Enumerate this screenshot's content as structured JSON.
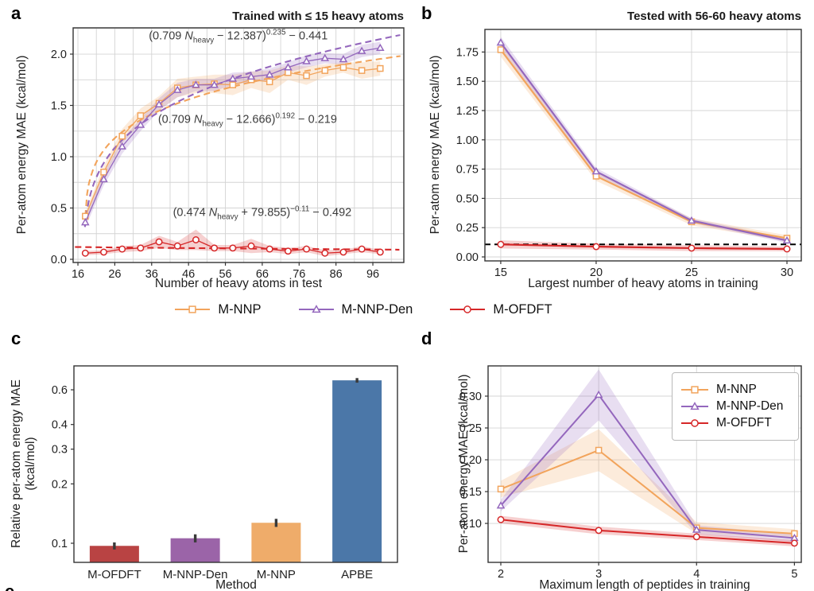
{
  "panels": {
    "a": {
      "label": "a",
      "title": "Trained with ≤ 15 heavy atoms",
      "xlabel": "Number of heavy atoms in test",
      "ylabel": "Per-atom energy MAE (kcal/mol)"
    },
    "b": {
      "label": "b",
      "title": "Tested with 56-60 heavy atoms",
      "xlabel": "Largest number of heavy atoms in training",
      "ylabel": "Per-atom energy MAE (kcal/mol)"
    },
    "c": {
      "label": "c",
      "xlabel": "Method",
      "ylabel_line1": "Relative per-atom energy MAE",
      "ylabel_line2": "(kcal/mol)"
    },
    "d": {
      "label": "d",
      "xlabel": "Maximum length of peptides in training",
      "ylabel": "Per-atom energy MAE (kcal/mol)"
    },
    "partial_next_label": "e"
  },
  "legend": {
    "items": [
      {
        "label": "M-NNP",
        "marker": "square",
        "color": "#F2A45C"
      },
      {
        "label": "M-NNP-Den",
        "marker": "triangle",
        "color": "#9467BD"
      },
      {
        "label": "M-OFDFT",
        "marker": "circle",
        "color": "#D62728"
      }
    ]
  },
  "chart_data": [
    {
      "id": "a",
      "type": "line",
      "title": "Trained with ≤ 15 heavy atoms",
      "xlabel": "Number of heavy atoms in test",
      "ylabel": "Per-atom energy MAE (kcal/mol)",
      "xlim": [
        14.7,
        104.4
      ],
      "ylim": [
        -0.031,
        2.256
      ],
      "xticks": {
        "values": [
          16,
          26,
          36,
          46,
          56,
          66,
          76,
          86,
          96
        ],
        "labels": [
          "16",
          "26",
          "36",
          "46",
          "56",
          "66",
          "76",
          "86",
          "96"
        ]
      },
      "yticks": {
        "values": [
          0.0,
          0.5,
          1.0,
          1.5,
          2.0
        ],
        "labels": [
          "0.0",
          "0.5",
          "1.0",
          "1.5",
          "2.0"
        ]
      },
      "xgrid": [
        16,
        21,
        26,
        31,
        36,
        41,
        46,
        51,
        56,
        61,
        66,
        71,
        76,
        81,
        86,
        91,
        96,
        101
      ],
      "ygrid": [
        0,
        0.25,
        0.5,
        0.75,
        1.0,
        1.25,
        1.5,
        1.75,
        2.0,
        2.25
      ],
      "x": [
        18,
        23,
        28,
        33,
        38,
        43,
        48,
        53,
        58,
        63,
        68,
        73,
        78,
        83,
        88,
        93,
        98
      ],
      "series": [
        {
          "name": "M-NNP",
          "marker": "square",
          "color": "#F2A45C",
          "line_width": 1.3,
          "values": [
            0.42,
            0.85,
            1.2,
            1.4,
            1.52,
            1.67,
            1.7,
            1.71,
            1.7,
            1.75,
            1.73,
            1.82,
            1.79,
            1.84,
            1.87,
            1.84,
            1.86
          ],
          "band": [
            0.04,
            0.06,
            0.07,
            0.07,
            0.07,
            0.09,
            0.08,
            0.09,
            0.1,
            0.08,
            0.11,
            0.07,
            0.09,
            0.06,
            0.05,
            0.08,
            0.07
          ]
        },
        {
          "name": "M-NNP-Den",
          "marker": "triangle",
          "color": "#9467BD",
          "line_width": 1.3,
          "values": [
            0.36,
            0.78,
            1.1,
            1.31,
            1.51,
            1.65,
            1.7,
            1.7,
            1.76,
            1.78,
            1.8,
            1.87,
            1.93,
            1.96,
            1.95,
            2.03,
            2.06
          ],
          "band": [
            0.05,
            0.06,
            0.07,
            0.06,
            0.06,
            0.07,
            0.06,
            0.06,
            0.06,
            0.05,
            0.06,
            0.05,
            0.06,
            0.05,
            0.05,
            0.06,
            0.06
          ]
        },
        {
          "name": "M-OFDFT",
          "marker": "circle",
          "color": "#D62728",
          "line_width": 1.3,
          "values": [
            0.06,
            0.07,
            0.1,
            0.11,
            0.17,
            0.13,
            0.19,
            0.11,
            0.11,
            0.13,
            0.1,
            0.08,
            0.1,
            0.06,
            0.07,
            0.1,
            0.07
          ],
          "band": [
            0.02,
            0.02,
            0.03,
            0.03,
            0.06,
            0.04,
            0.1,
            0.03,
            0.03,
            0.07,
            0.03,
            0.03,
            0.03,
            0.03,
            0.02,
            0.03,
            0.02
          ]
        }
      ],
      "fits": [
        {
          "for": "M-NNP",
          "a": 0.709,
          "b": -12.666,
          "p": 0.192,
          "c": -0.219,
          "color": "#F2A45C",
          "x_start": 18.0,
          "x_end": 103.5
        },
        {
          "for": "M-NNP-Den",
          "a": 0.709,
          "b": -12.387,
          "p": 0.235,
          "c": -0.441,
          "color": "#9467BD",
          "x_start": 17.9,
          "x_end": 103.5
        },
        {
          "for": "M-OFDFT",
          "a": 0.474,
          "b": 79.855,
          "p": -0.11,
          "c": -0.492,
          "color": "#D62728",
          "x_start": 15.2,
          "x_end": 103.5
        }
      ],
      "annotations": [
        {
          "x": 59.5,
          "y": 2.17,
          "parts": [
            {
              "t": "(0.709 "
            },
            {
              "t": "N",
              "it": true
            },
            {
              "t": "heavy",
              "sub": true
            },
            {
              "t": " − 12.387)"
            },
            {
              "t": "0.235",
              "sup": true
            },
            {
              "t": " − 0.441"
            }
          ]
        },
        {
          "x": 62.0,
          "y": 1.36,
          "parts": [
            {
              "t": "(0.709 "
            },
            {
              "t": "N",
              "it": true
            },
            {
              "t": "heavy",
              "sub": true
            },
            {
              "t": " − 12.666)"
            },
            {
              "t": "0.192",
              "sup": true
            },
            {
              "t": " − 0.219"
            }
          ]
        },
        {
          "x": 66.0,
          "y": 0.45,
          "parts": [
            {
              "t": "(0.474 "
            },
            {
              "t": "N",
              "it": true
            },
            {
              "t": "heavy",
              "sub": true
            },
            {
              "t": " + 79.855)"
            },
            {
              "t": "−0.11",
              "sup": true
            },
            {
              "t": " − 0.492"
            }
          ]
        }
      ]
    },
    {
      "id": "b",
      "type": "line",
      "title": "Tested with 56-60 heavy atoms",
      "xlabel": "Largest number of heavy atoms in training",
      "ylabel": "Per-atom energy MAE (kcal/mol)",
      "xlim": [
        14.17,
        30.75
      ],
      "ylim": [
        -0.034,
        1.943
      ],
      "xticks": {
        "values": [
          15,
          20,
          25,
          30
        ],
        "labels": [
          "15",
          "20",
          "25",
          "30"
        ]
      },
      "yticks": {
        "values": [
          0.0,
          0.25,
          0.5,
          0.75,
          1.0,
          1.25,
          1.5,
          1.75
        ],
        "labels": [
          "0.00",
          "0.25",
          "0.50",
          "0.75",
          "1.00",
          "1.25",
          "1.50",
          "1.75"
        ]
      },
      "xgrid": [
        15,
        20,
        25,
        30
      ],
      "ygrid": [
        0,
        0.25,
        0.5,
        0.75,
        1.0,
        1.25,
        1.5,
        1.75
      ],
      "x": [
        15,
        20,
        25,
        30
      ],
      "series": [
        {
          "name": "M-NNP",
          "marker": "square",
          "color": "#F2A45C",
          "line_width": 2.2,
          "values": [
            1.77,
            0.69,
            0.3,
            0.16
          ],
          "band": [
            0.06,
            0.04,
            0.03,
            0.025
          ]
        },
        {
          "name": "M-NNP-Den",
          "marker": "triangle",
          "color": "#9467BD",
          "line_width": 2.2,
          "values": [
            1.83,
            0.73,
            0.31,
            0.14
          ],
          "band": [
            0.05,
            0.03,
            0.02,
            0.02
          ]
        },
        {
          "name": "M-OFDFT",
          "marker": "circle",
          "color": "#D62728",
          "line_width": 2.2,
          "values": [
            0.107,
            0.088,
            0.075,
            0.068
          ],
          "band": [
            0.035,
            0.025,
            0.025,
            0.02
          ]
        }
      ],
      "hlines": [
        {
          "y": 0.107,
          "color": "#000000",
          "dash": "7 5",
          "width": 2
        }
      ]
    },
    {
      "id": "c",
      "type": "bar",
      "yscale": "log",
      "xlabel": "Method",
      "ylabel": "Relative per-atom energy MAE (kcal/mol)",
      "categories": [
        "M-OFDFT",
        "M-NNP-Den",
        "M-NNP",
        "APBE"
      ],
      "values": [
        0.097,
        0.106,
        0.127,
        0.67
      ],
      "errors": [
        0.004,
        0.005,
        0.006,
        0.018
      ],
      "bar_colors": [
        "#B94343",
        "#9B64A8",
        "#EFAC6A",
        "#4B77A8"
      ],
      "ylim": [
        0.08,
        0.793
      ],
      "yticks": {
        "values": [
          0.1,
          0.2,
          0.3,
          0.4,
          0.6
        ],
        "labels": [
          "0.1",
          "0.2",
          "0.3",
          "0.4",
          "0.6"
        ]
      }
    },
    {
      "id": "d",
      "type": "line",
      "xlabel": "Maximum length of peptides in training",
      "ylabel": "Per-atom energy MAE (kcal/mol)",
      "xlim": [
        1.87,
        5.07
      ],
      "ylim": [
        0.0388,
        0.3475
      ],
      "xticks": {
        "values": [
          2,
          3,
          4,
          5
        ],
        "labels": [
          "2",
          "3",
          "4",
          "5"
        ]
      },
      "yticks": {
        "values": [
          0.1,
          0.15,
          0.2,
          0.25,
          0.3
        ],
        "labels": [
          "0.10",
          "0.15",
          "0.20",
          "0.25",
          "0.30"
        ]
      },
      "xgrid": [
        2,
        3,
        4,
        5
      ],
      "ygrid": [
        0.1,
        0.15,
        0.2,
        0.25,
        0.3
      ],
      "x": [
        2,
        3,
        4,
        5
      ],
      "series": [
        {
          "name": "M-NNP",
          "marker": "square",
          "color": "#F2A45C",
          "line_width": 2,
          "values": [
            0.154,
            0.215,
            0.093,
            0.084
          ],
          "band": [
            0.013,
            0.033,
            0.009,
            0.007
          ]
        },
        {
          "name": "M-NNP-Den",
          "marker": "triangle",
          "color": "#9467BD",
          "line_width": 2,
          "values": [
            0.128,
            0.302,
            0.09,
            0.077
          ],
          "band": [
            0.009,
            0.04,
            0.007,
            0.006
          ]
        },
        {
          "name": "M-OFDFT",
          "marker": "circle",
          "color": "#D62728",
          "line_width": 2,
          "values": [
            0.106,
            0.089,
            0.079,
            0.069
          ],
          "band": [
            0.006,
            0.006,
            0.005,
            0.005
          ]
        }
      ]
    }
  ]
}
